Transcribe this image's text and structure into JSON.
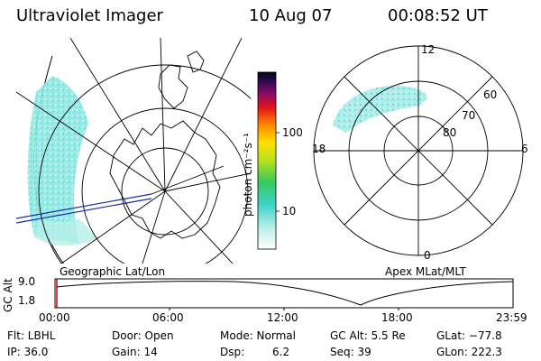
{
  "header": {
    "title": "Ultraviolet Imager",
    "date": "10 Aug 07",
    "time": "00:08:52 UT"
  },
  "colorbar": {
    "unit_label": "photon cm⁻²s⁻¹",
    "ticks": [
      "100",
      "10"
    ]
  },
  "polar": {
    "mlt_labels": [
      "12",
      "18",
      "6",
      "0"
    ],
    "lat_labels": [
      "60",
      "70",
      "80"
    ]
  },
  "panels": {
    "left_caption": "Geographic Lat/Lon",
    "right_caption": "Apex MLat/MLT"
  },
  "altitude_plot": {
    "ylabel": "GC Alt",
    "yticks": [
      "9.0",
      "1.8"
    ],
    "xticks": [
      "00:00",
      "06:00",
      "12:00",
      "18:00",
      "23:59"
    ]
  },
  "meta": {
    "flt": "Flt: LBHL",
    "ip": "IP: 36.0",
    "door": "Door: Open",
    "gain": "Gain: 14",
    "mode": "Mode: Normal",
    "dsp_label": "Dsp:",
    "dsp_value": "6.2",
    "gc_alt": "GC Alt: 5.5 Re",
    "seq": "Seq: 39",
    "glat": "GLat: −77.8",
    "glon": "GLon: 222.3"
  },
  "colors": {
    "aurora": "#7fe6e0",
    "line_blue": "#1a2aa0"
  }
}
